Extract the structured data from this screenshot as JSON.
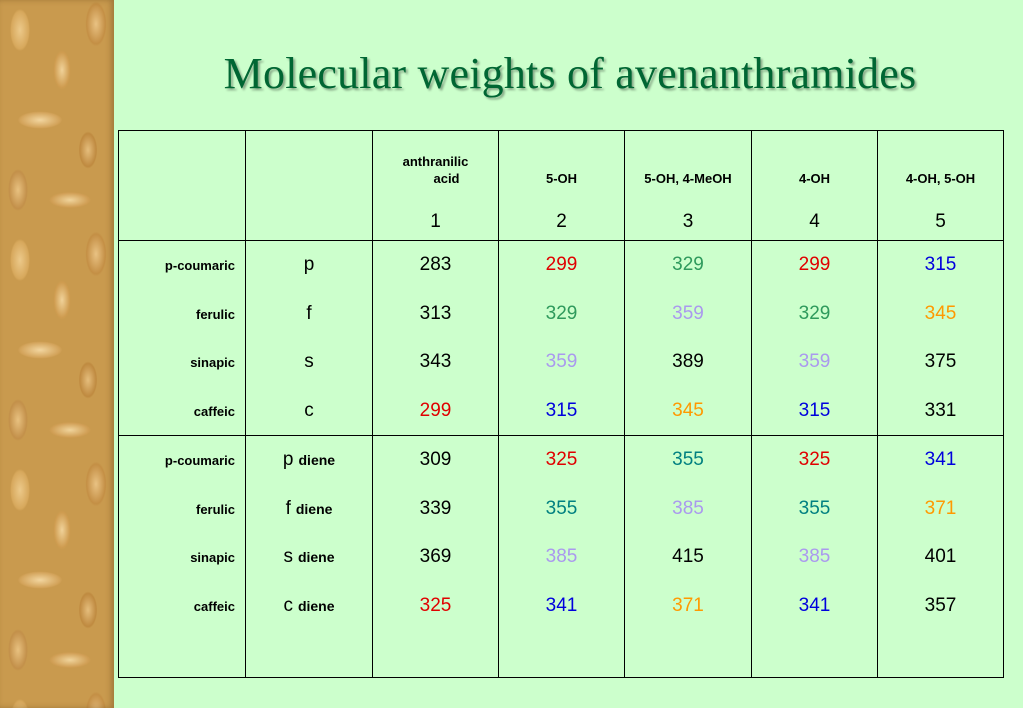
{
  "title": "Molecular weights of avenanthramides",
  "colors": {
    "red": "#e00000",
    "green": "#2e9a5c",
    "lavender": "#aa99ee",
    "orange": "#ff9900",
    "blue": "#0000dd",
    "teal": "#008080",
    "black": "#000000"
  },
  "columns": [
    {
      "name": "anthranilic acid",
      "num": "1"
    },
    {
      "name": "5-OH",
      "num": "2"
    },
    {
      "name": "5-OH, 4-MeOH",
      "num": "3"
    },
    {
      "name": "4-OH",
      "num": "4"
    },
    {
      "name": "4-OH, 5-OH",
      "num": "5"
    }
  ],
  "header_anthranilic_line1": "anthranilic",
  "header_anthranilic_line2": "acid",
  "block1": {
    "rows": [
      {
        "label": "p-coumaric",
        "abbr": "p",
        "values": [
          "283",
          "299",
          "329",
          "299",
          "315"
        ],
        "colors": [
          "black",
          "red",
          "green",
          "red",
          "blue"
        ]
      },
      {
        "label": "ferulic",
        "abbr": "f",
        "values": [
          "313",
          "329",
          "359",
          "329",
          "345"
        ],
        "colors": [
          "black",
          "green",
          "lavender",
          "green",
          "orange"
        ]
      },
      {
        "label": "sinapic",
        "abbr": "s",
        "values": [
          "343",
          "359",
          "389",
          "359",
          "375"
        ],
        "colors": [
          "black",
          "lavender",
          "black",
          "lavender",
          "black"
        ]
      },
      {
        "label": "caffeic",
        "abbr": "c",
        "values": [
          "299",
          "315",
          "345",
          "315",
          "331"
        ],
        "colors": [
          "red",
          "blue",
          "orange",
          "blue",
          "black"
        ]
      }
    ]
  },
  "block2": {
    "suffix": "diene",
    "rows": [
      {
        "label": "p-coumaric",
        "abbr": "p",
        "values": [
          "309",
          "325",
          "355",
          "325",
          "341"
        ],
        "colors": [
          "black",
          "red",
          "teal",
          "red",
          "blue"
        ]
      },
      {
        "label": "ferulic",
        "abbr": "f",
        "values": [
          "339",
          "355",
          "385",
          "355",
          "371"
        ],
        "colors": [
          "black",
          "teal",
          "lavender",
          "teal",
          "orange"
        ]
      },
      {
        "label": "sinapic",
        "abbr": "s",
        "values": [
          "369",
          "385",
          "415",
          "385",
          "401"
        ],
        "colors": [
          "black",
          "lavender",
          "black",
          "lavender",
          "black"
        ]
      },
      {
        "label": "caffeic",
        "abbr": "c",
        "values": [
          "325",
          "341",
          "371",
          "341",
          "357"
        ],
        "colors": [
          "red",
          "blue",
          "orange",
          "blue",
          "black"
        ]
      }
    ]
  }
}
